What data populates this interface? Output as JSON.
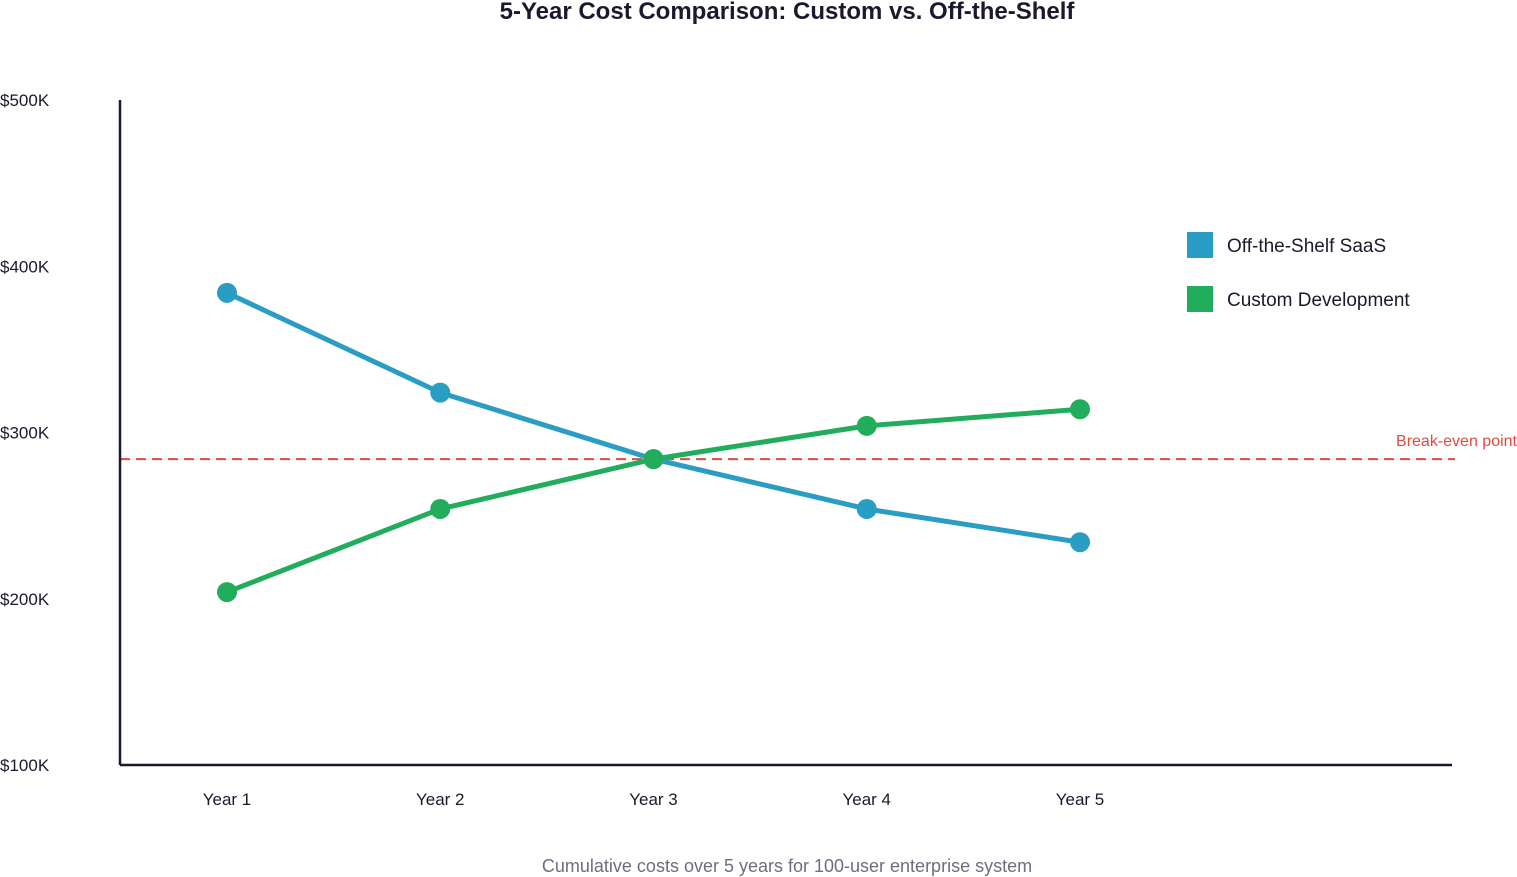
{
  "chart_data": {
    "type": "line",
    "title": "5-Year Cost Comparison: Custom vs. Off-the-Shelf",
    "caption": "Cumulative costs over 5 years for 100-user enterprise system",
    "xlabel": "",
    "ylabel": "",
    "categories": [
      "Year 1",
      "Year 2",
      "Year 3",
      "Year 4",
      "Year 5"
    ],
    "y_ticks": [
      100,
      200,
      300,
      400,
      500
    ],
    "y_tick_labels": [
      "$100K",
      "$200K",
      "$300K",
      "$400K",
      "$500K"
    ],
    "ylim": [
      100,
      500
    ],
    "grid": false,
    "legend_position": "top-right",
    "series": [
      {
        "name": "Off-the-Shelf SaaS",
        "color": "#2a9dc4",
        "values": [
          384,
          324,
          284,
          254,
          234
        ]
      },
      {
        "name": "Custom Development",
        "color": "#22ad5c",
        "values": [
          204,
          254,
          284,
          304,
          314
        ]
      }
    ],
    "reference_line": {
      "label": "Break-even point",
      "value": 284,
      "color": "#e04b3f"
    }
  }
}
